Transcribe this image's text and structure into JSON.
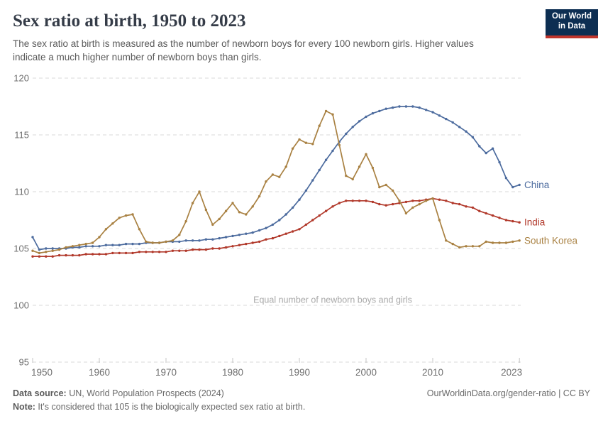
{
  "header": {
    "title": "Sex ratio at birth, 1950 to 2023",
    "subtitle_line1": "The sex ratio at birth is measured as the number of newborn boys for every 100 newborn girls. Higher values",
    "subtitle_line2": "indicate a much higher number of newborn boys than girls."
  },
  "logo": {
    "line1": "Our World",
    "line2": "in Data",
    "bg_color": "#0d2e52",
    "bar_color": "#c0352c"
  },
  "chart_data": {
    "type": "line",
    "title": "Sex ratio at birth, 1950 to 2023",
    "xlabel": "",
    "ylabel": "",
    "xlim": [
      1950,
      2023
    ],
    "ylim": [
      95,
      120
    ],
    "yticks": [
      95,
      100,
      105,
      110,
      115,
      120
    ],
    "xticks": [
      1950,
      1960,
      1970,
      1980,
      1990,
      2000,
      2010,
      2023
    ],
    "grid": "dashed-horizontal",
    "legend_position": "line-end-labels",
    "annotation": {
      "text": "Equal number of newborn boys and girls",
      "y": 100,
      "x_center": 1995,
      "color": "#a9a9a9"
    },
    "years": [
      1950,
      1951,
      1952,
      1953,
      1954,
      1955,
      1956,
      1957,
      1958,
      1959,
      1960,
      1961,
      1962,
      1963,
      1964,
      1965,
      1966,
      1967,
      1968,
      1969,
      1970,
      1971,
      1972,
      1973,
      1974,
      1975,
      1976,
      1977,
      1978,
      1979,
      1980,
      1981,
      1982,
      1983,
      1984,
      1985,
      1986,
      1987,
      1988,
      1989,
      1990,
      1991,
      1992,
      1993,
      1994,
      1995,
      1996,
      1997,
      1998,
      1999,
      2000,
      2001,
      2002,
      2003,
      2004,
      2005,
      2006,
      2007,
      2008,
      2009,
      2010,
      2011,
      2012,
      2013,
      2014,
      2015,
      2016,
      2017,
      2018,
      2019,
      2020,
      2021,
      2022,
      2023
    ],
    "series": [
      {
        "name": "China",
        "color": "#4c6b9e",
        "values": [
          106.0,
          104.9,
          105.0,
          105.0,
          105.0,
          105.0,
          105.1,
          105.1,
          105.2,
          105.2,
          105.2,
          105.3,
          105.3,
          105.3,
          105.4,
          105.4,
          105.4,
          105.5,
          105.5,
          105.5,
          105.6,
          105.6,
          105.6,
          105.7,
          105.7,
          105.7,
          105.8,
          105.8,
          105.9,
          106.0,
          106.1,
          106.2,
          106.3,
          106.4,
          106.6,
          106.8,
          107.1,
          107.5,
          108.0,
          108.6,
          109.3,
          110.1,
          111.0,
          111.9,
          112.8,
          113.6,
          114.4,
          115.1,
          115.7,
          116.2,
          116.6,
          116.9,
          117.1,
          117.3,
          117.4,
          117.5,
          117.5,
          117.5,
          117.4,
          117.2,
          117.0,
          116.7,
          116.4,
          116.1,
          115.7,
          115.3,
          114.8,
          114.0,
          113.4,
          113.8,
          112.6,
          111.2,
          110.4,
          110.6
        ]
      },
      {
        "name": "India",
        "color": "#b1382a",
        "values": [
          104.3,
          104.3,
          104.3,
          104.3,
          104.4,
          104.4,
          104.4,
          104.4,
          104.5,
          104.5,
          104.5,
          104.5,
          104.6,
          104.6,
          104.6,
          104.6,
          104.7,
          104.7,
          104.7,
          104.7,
          104.7,
          104.8,
          104.8,
          104.8,
          104.9,
          104.9,
          104.9,
          105.0,
          105.0,
          105.1,
          105.2,
          105.3,
          105.4,
          105.5,
          105.6,
          105.8,
          105.9,
          106.1,
          106.3,
          106.5,
          106.7,
          107.1,
          107.5,
          107.9,
          108.3,
          108.7,
          109.0,
          109.2,
          109.2,
          109.2,
          109.2,
          109.1,
          108.9,
          108.8,
          108.9,
          109.0,
          109.1,
          109.2,
          109.2,
          109.3,
          109.4,
          109.3,
          109.2,
          109.0,
          108.9,
          108.7,
          108.6,
          108.3,
          108.1,
          107.9,
          107.7,
          107.5,
          107.4,
          107.3
        ]
      },
      {
        "name": "South Korea",
        "color": "#a98142",
        "values": [
          104.8,
          104.6,
          104.7,
          104.8,
          104.9,
          105.1,
          105.2,
          105.3,
          105.4,
          105.5,
          106.0,
          106.7,
          107.2,
          107.7,
          107.9,
          108.0,
          106.7,
          105.6,
          105.5,
          105.5,
          105.6,
          105.7,
          106.2,
          107.4,
          109.0,
          110.0,
          108.4,
          107.1,
          107.6,
          108.3,
          109.0,
          108.2,
          108.0,
          108.7,
          109.6,
          110.9,
          111.5,
          111.3,
          112.2,
          113.8,
          114.6,
          114.3,
          114.2,
          115.8,
          117.1,
          116.8,
          114.1,
          111.4,
          111.1,
          112.2,
          113.3,
          112.1,
          110.4,
          110.6,
          110.1,
          109.2,
          108.1,
          108.6,
          108.9,
          109.2,
          109.4,
          107.5,
          105.7,
          105.4,
          105.1,
          105.2,
          105.2,
          105.2,
          105.6,
          105.5,
          105.5,
          105.5,
          105.6,
          105.7
        ]
      }
    ]
  },
  "footer": {
    "datasource_label": "Data source:",
    "datasource_text": " UN, World Population Prospects (2024)",
    "rights": "OurWorldinData.org/gender-ratio | CC BY",
    "note_label": "Note:",
    "note_text": " It's considered that 105 is the biologically expected sex ratio at birth."
  }
}
